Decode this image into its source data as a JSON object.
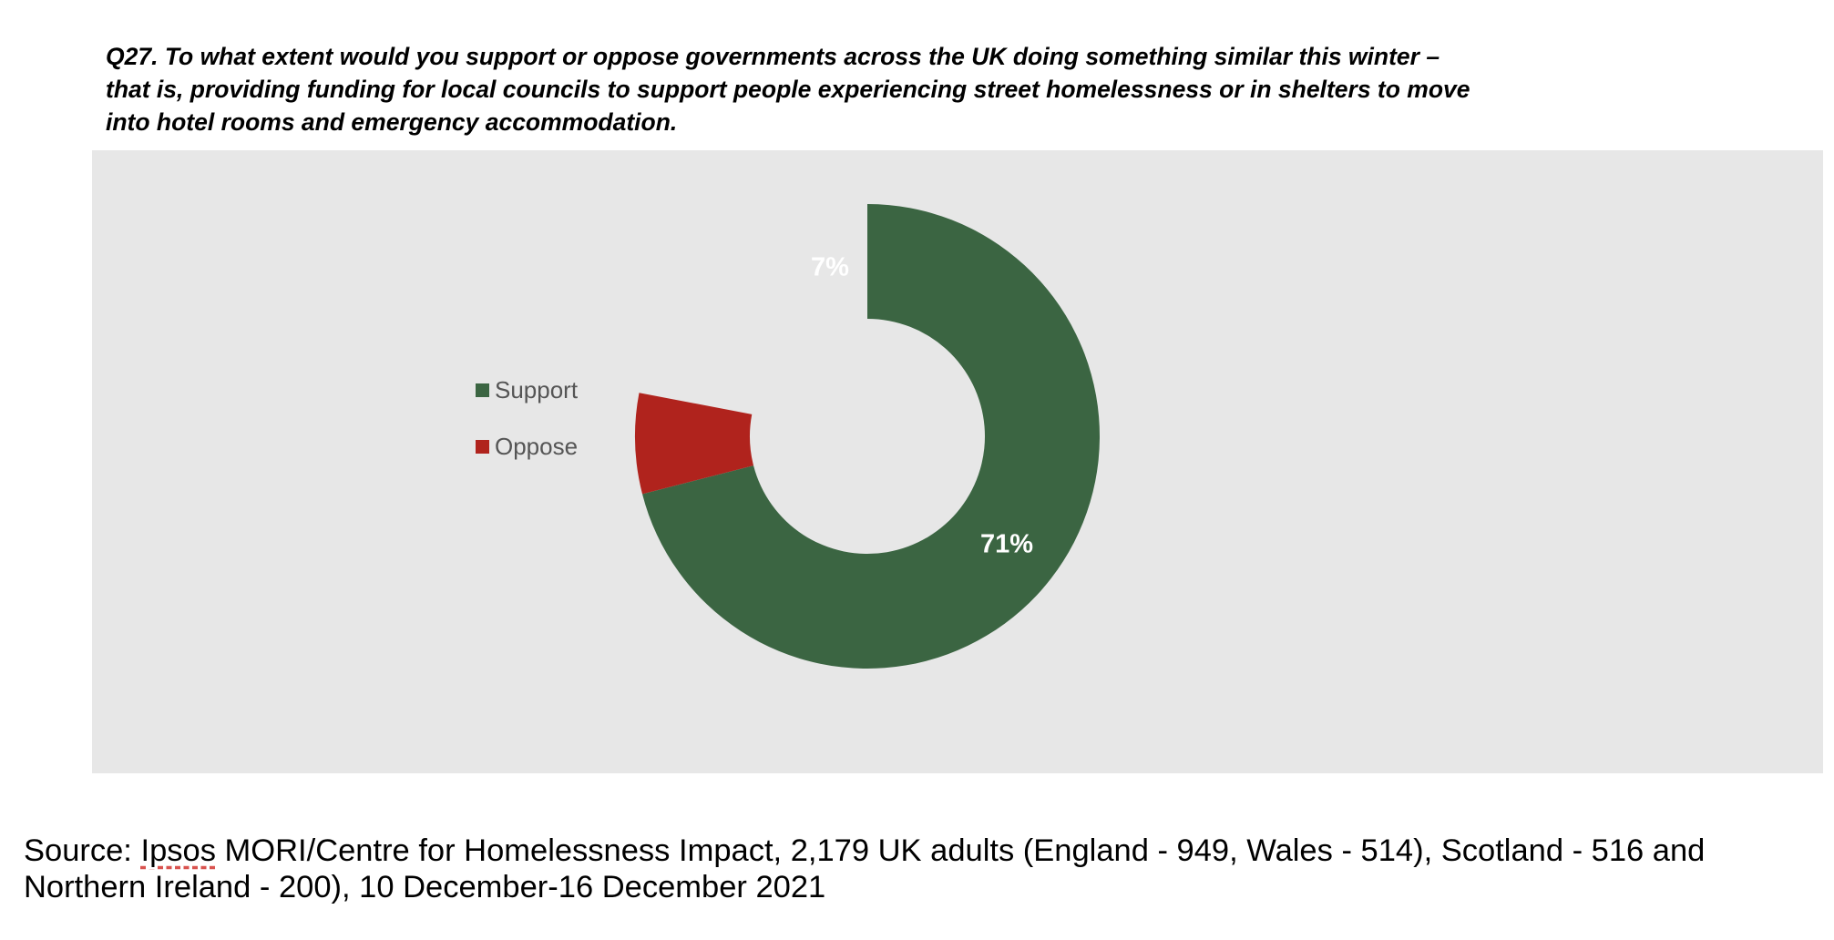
{
  "question": "Q27. To what extent would you support or oppose governments across the UK doing something similar this winter – that is, providing funding for local councils to support people experiencing street homelessness or in shelters to move into hotel rooms and emergency accommodation.",
  "source": {
    "prefix": "Source: ",
    "org": "Ipsos",
    "rest": " MORI/Centre for Homelessness Impact, 2,179 UK adults (England - 949, Wales - 514), Scotland - 516 and Northern Ireland - 200), 10 December-16 December 2021"
  },
  "chart_data": {
    "type": "pie",
    "variant": "donut",
    "title": "",
    "slices": [
      {
        "name": "Support",
        "value": 71,
        "label": "71%",
        "color": "#3b6542"
      },
      {
        "name": "Oppose",
        "value": 7,
        "label": "7%",
        "color": "#b0231d"
      }
    ],
    "legend": {
      "position": "left",
      "entries": [
        "Support",
        "Oppose"
      ]
    },
    "background_color": "#e7e7e7"
  }
}
